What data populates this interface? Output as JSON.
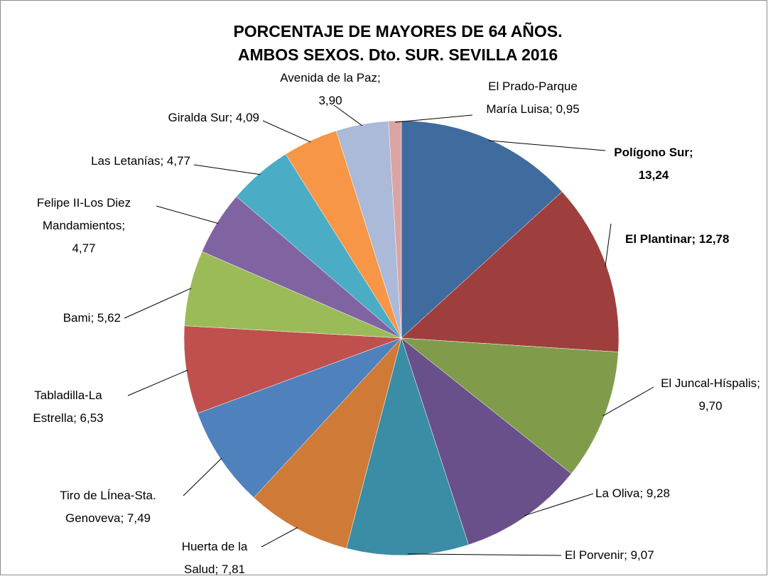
{
  "chart_data": {
    "type": "pie",
    "title": [
      "PORCENTAJE DE MAYORES DE 64 AÑOS.",
      "AMBOS SEXOS. Dto. SUR. SEVILLA 2016"
    ],
    "categories": [
      "Polígono Sur",
      "El Plantinar",
      "El Juncal-Híspalis",
      "La Oliva",
      "El Porvenir",
      "Huerta de la Salud",
      "Tiro de LÍnea-Sta. Genoveva",
      "Tabladilla-La Estrella",
      "Bami",
      "Felipe II-Los Diez Mandamientos",
      "Las Letanías",
      "Giralda Sur",
      "Avenida de la Paz",
      "El Prado-Parque María Luisa"
    ],
    "values": [
      13.24,
      12.78,
      9.7,
      9.28,
      9.07,
      7.81,
      7.49,
      6.53,
      5.62,
      4.77,
      4.77,
      4.09,
      3.9,
      0.95
    ],
    "value_labels": [
      "13,24",
      "12,78",
      "9,70",
      "9,28",
      "9,07",
      "7,81",
      "7,49",
      "6,53",
      "5,62",
      "4,77",
      "4,77",
      "4,09",
      "3,90",
      "0,95"
    ],
    "colors": [
      "#3f6b9e",
      "#9e3f3d",
      "#809c4a",
      "#6a508b",
      "#3a8da4",
      "#cf7a37",
      "#4f81bd",
      "#c0504d",
      "#9bbb59",
      "#8064a2",
      "#4bacc6",
      "#f79646",
      "#aabad8",
      "#d9a4a3"
    ]
  }
}
